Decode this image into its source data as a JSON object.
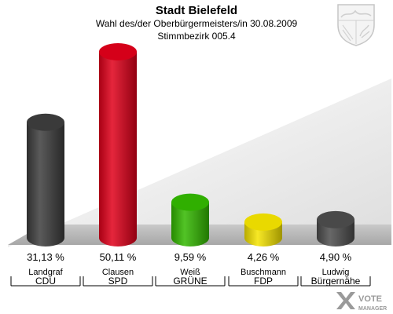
{
  "header": {
    "title": "Stadt Bielefeld",
    "subtitle": "Wahl des/der Oberbürgermeisters/in 30.08.2009",
    "subtitle2": "Stimmbezirk 005.4"
  },
  "chart_data": {
    "type": "bar",
    "title": "Stadt Bielefeld",
    "subtitle": "Wahl des/der Oberbürgermeisters/in 30.08.2009 · Stimmbezirk 005.4",
    "categories": [
      "Landgraf",
      "Clausen",
      "Weiß",
      "Buschmann",
      "Ludwig"
    ],
    "parties": [
      "CDU",
      "SPD",
      "GRÜNE",
      "FDP",
      "Bürgernähe"
    ],
    "values": [
      31.13,
      50.11,
      9.59,
      4.26,
      4.9
    ],
    "value_labels": [
      "31,13 %",
      "50,11 %",
      "9,59 %",
      "4,26 %",
      "4,90 %"
    ],
    "colors": [
      "#3d3d3d",
      "#e0001a",
      "#33b800",
      "#f5e400",
      "#4d4d4d"
    ],
    "ylim": [
      0,
      50.11
    ],
    "grid": false,
    "legend": "none"
  },
  "branding": {
    "watermark": "VOTE MANAGER",
    "crest_icon": "nrw-coat-of-arms-icon"
  }
}
